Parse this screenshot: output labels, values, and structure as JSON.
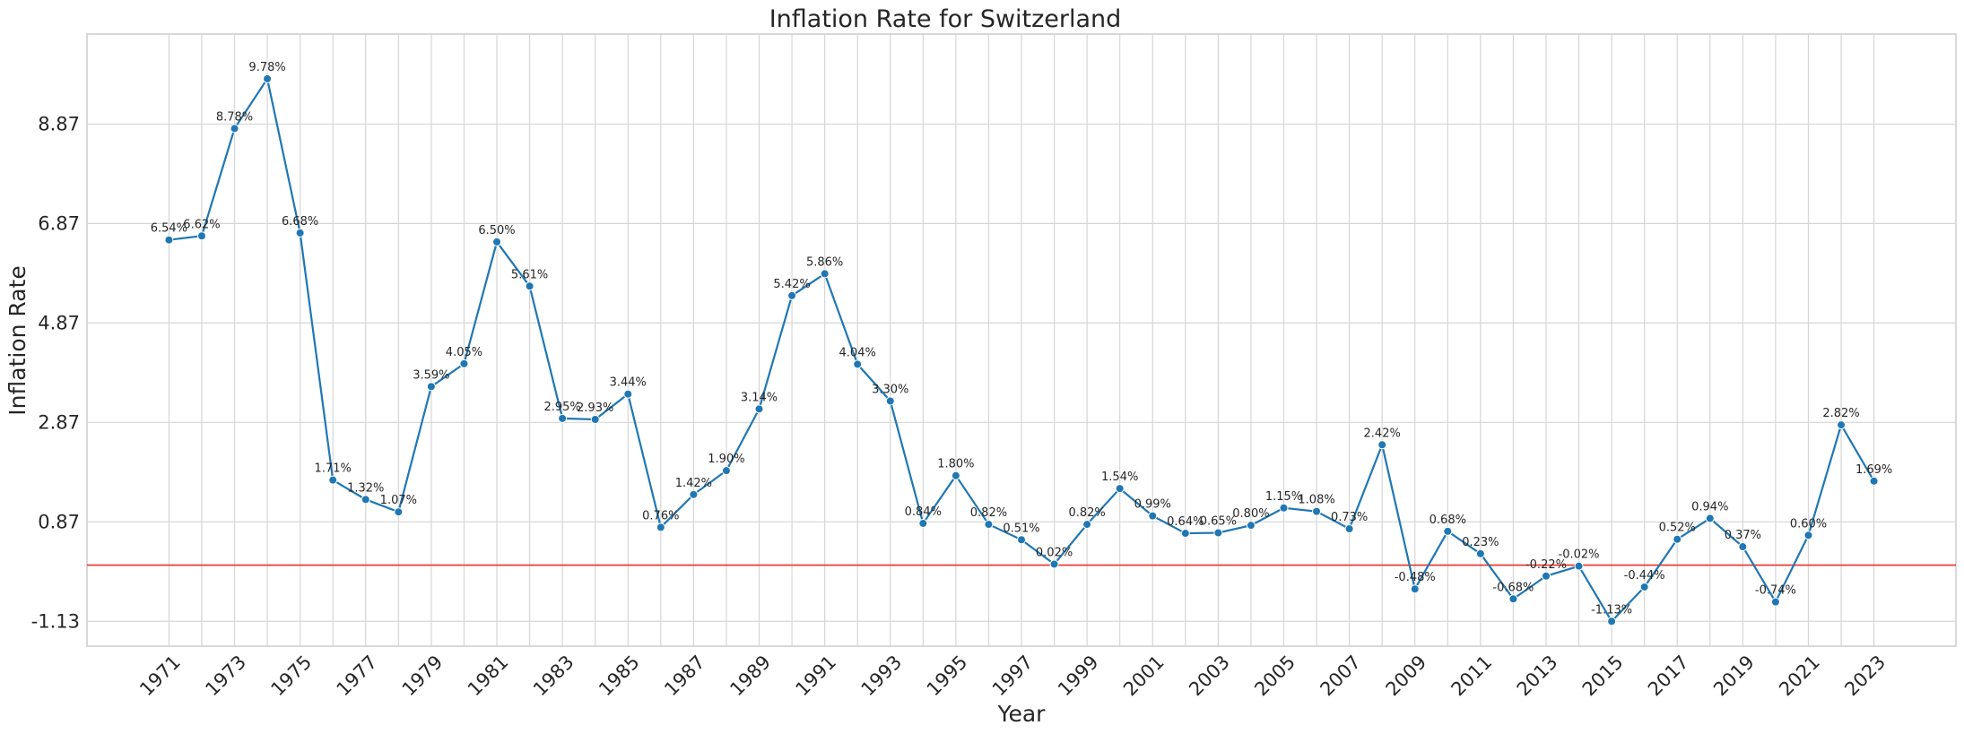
{
  "chart_data": {
    "type": "line",
    "title": "Inflation Rate for Switzerland",
    "xlabel": "Year",
    "ylabel": "Inflation Rate",
    "x": [
      1971,
      1972,
      1973,
      1974,
      1975,
      1976,
      1977,
      1978,
      1979,
      1980,
      1981,
      1982,
      1983,
      1984,
      1985,
      1986,
      1987,
      1988,
      1989,
      1990,
      1991,
      1992,
      1993,
      1994,
      1995,
      1996,
      1997,
      1998,
      1999,
      2000,
      2001,
      2002,
      2003,
      2004,
      2005,
      2006,
      2007,
      2008,
      2009,
      2010,
      2011,
      2012,
      2013,
      2014,
      2015,
      2016,
      2017,
      2018,
      2019,
      2020,
      2021,
      2022,
      2023
    ],
    "values": [
      6.54,
      6.62,
      8.78,
      9.78,
      6.68,
      1.71,
      1.32,
      1.07,
      3.59,
      4.05,
      6.5,
      5.61,
      2.95,
      2.93,
      3.44,
      0.76,
      1.42,
      1.9,
      3.14,
      5.42,
      5.86,
      4.04,
      3.3,
      0.84,
      1.8,
      0.82,
      0.51,
      0.02,
      0.82,
      1.54,
      0.99,
      0.64,
      0.65,
      0.8,
      1.15,
      1.08,
      0.73,
      2.42,
      -0.48,
      0.68,
      0.23,
      -0.68,
      -0.22,
      -0.02,
      -1.13,
      -0.44,
      0.52,
      0.94,
      0.37,
      -0.74,
      0.6,
      2.82,
      1.69
    ],
    "data_labels": [
      "6.54%",
      "6.62%",
      "8.78%",
      "9.78%",
      "6.68%",
      "1.71%",
      "1.32%",
      "1.07%",
      "3.59%",
      "4.05%",
      "6.50%",
      "5.61%",
      "2.95%",
      "2.93%",
      "3.44%",
      "0.76%",
      "1.42%",
      "1.90%",
      "3.14%",
      "5.42%",
      "5.86%",
      "4.04%",
      "3.30%",
      "0.84%",
      "1.80%",
      "0.82%",
      "0.51%",
      "0.02%",
      "0.82%",
      "1.54%",
      "0.99%",
      "0.64%",
      "0.65%",
      "0.80%",
      "1.15%",
      "1.08%",
      "0.73%",
      "2.42%",
      "-0.48%",
      "0.68%",
      "0.23%",
      "-0.68%",
      "-0.22%",
      "-0.02%",
      "-1.13%",
      "-0.44%",
      "0.52%",
      "0.94%",
      "0.37%",
      "-0.74%",
      "0.60%",
      "2.82%",
      "1.69%"
    ],
    "x_ticks": [
      "1971",
      "1973",
      "1975",
      "1977",
      "1979",
      "1981",
      "1983",
      "1985",
      "1987",
      "1989",
      "1991",
      "1993",
      "1995",
      "1997",
      "1999",
      "2001",
      "2003",
      "2005",
      "2007",
      "2009",
      "2011",
      "2013",
      "2015",
      "2017",
      "2019",
      "2021",
      "2023"
    ],
    "y_ticks": [
      "-1.13",
      "0.87",
      "2.87",
      "4.87",
      "6.87",
      "8.87"
    ],
    "y_tick_values": [
      -1.13,
      0.87,
      2.87,
      4.87,
      6.87,
      8.87
    ],
    "xlim": [
      1968.5,
      2025.5
    ],
    "ylim": [
      -1.63,
      10.68
    ],
    "reference_line": {
      "y": 0,
      "color": "#e8302a"
    },
    "line_color": "#1f77b4",
    "grid": true
  }
}
